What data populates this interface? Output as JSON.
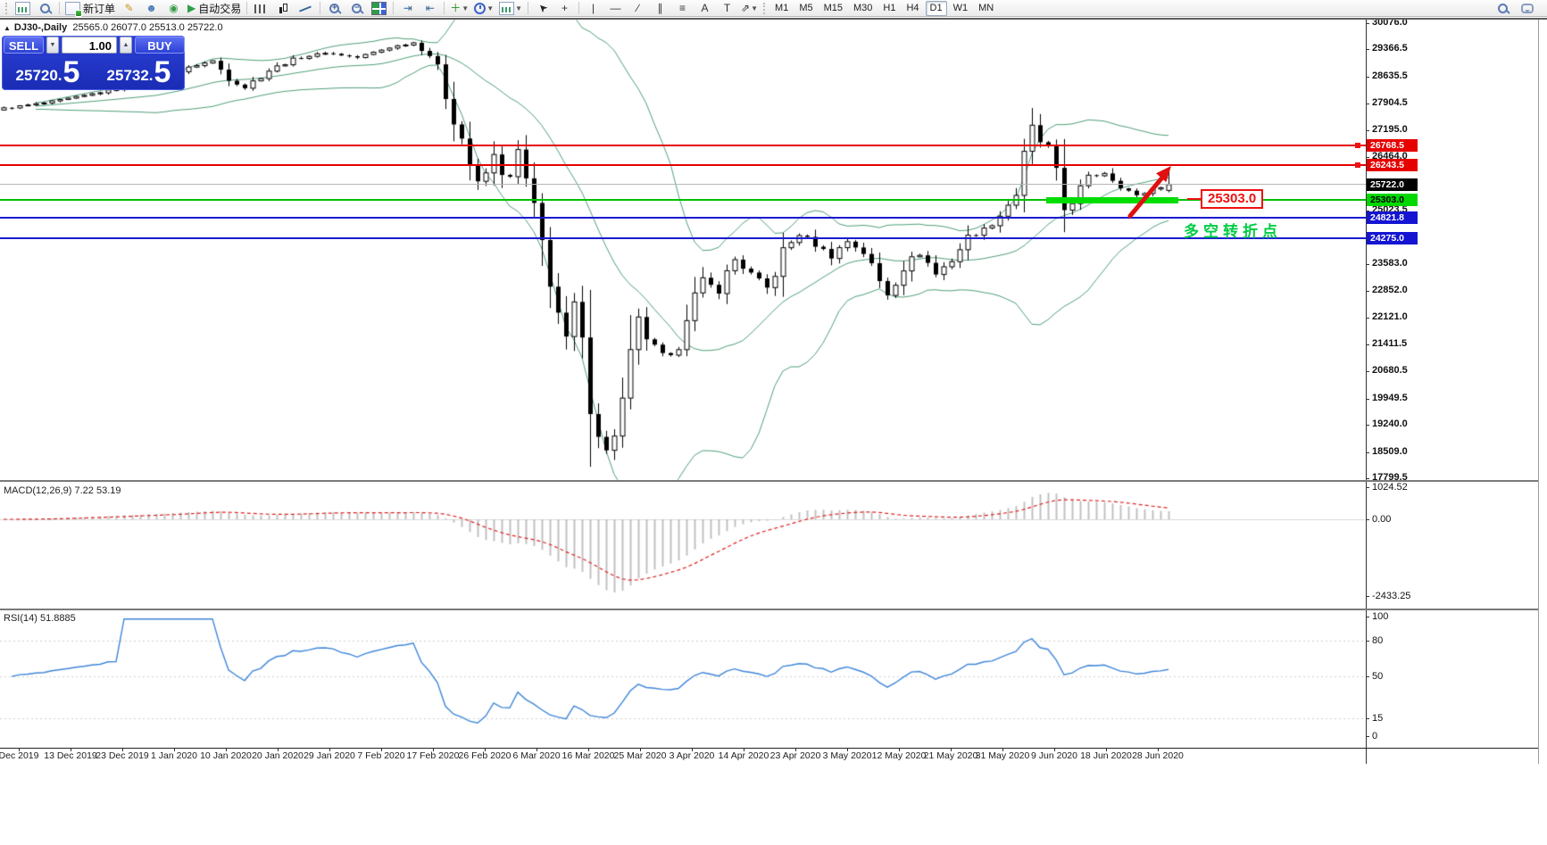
{
  "toolbar": {
    "groups": [
      {
        "items": [
          {
            "name": "new-chart",
            "icon": "ic-chart"
          },
          {
            "name": "profiles",
            "icon": "ic-mag"
          }
        ]
      },
      {
        "items": [
          {
            "name": "new-order",
            "icon": "ic-doc",
            "label": "新订单"
          },
          {
            "name": "metaeditor",
            "glyph": "✎",
            "color": "#c8961e"
          },
          {
            "name": "community",
            "glyph": "☻",
            "color": "#4a7db8"
          },
          {
            "name": "signals",
            "glyph": "◉",
            "color": "#3a9d4a"
          },
          {
            "name": "autotrading",
            "glyph": "▶",
            "color": "#2e9e46",
            "label": "自动交易"
          }
        ]
      },
      {
        "items": [
          {
            "name": "bar-chart",
            "icon": "ic-bars"
          },
          {
            "name": "candlestick-chart",
            "icon": "ic-candles"
          },
          {
            "name": "line-chart",
            "icon": "ic-line"
          }
        ]
      },
      {
        "items": [
          {
            "name": "zoom-in",
            "icon": "ic-mag",
            "magglyph": "+"
          },
          {
            "name": "zoom-out",
            "icon": "ic-mag",
            "magglyph": "−"
          },
          {
            "name": "tile-windows",
            "icon": "ic-tiles"
          }
        ]
      },
      {
        "items": [
          {
            "name": "auto-scroll",
            "glyph": "⇥",
            "color": "#35679a"
          },
          {
            "name": "chart-shift",
            "glyph": "⇤",
            "color": "#35679a"
          }
        ]
      },
      {
        "items": [
          {
            "name": "indicators",
            "glyph": "＋",
            "color": "#1f8f1f",
            "dropdown": true
          },
          {
            "name": "periods",
            "icon": "ic-clock",
            "dropdown": true
          },
          {
            "name": "templates",
            "icon": "ic-chart",
            "dropdown": true
          }
        ]
      },
      {
        "items": [
          {
            "name": "cursor",
            "glyph": "➤",
            "color": "#222",
            "rotate": -135
          },
          {
            "name": "crosshair",
            "glyph": "+",
            "color": "#333"
          }
        ]
      },
      {
        "items": [
          {
            "name": "vertical-line",
            "glyph": "|",
            "color": "#333"
          },
          {
            "name": "horizontal-line",
            "glyph": "—",
            "color": "#333"
          },
          {
            "name": "trendline",
            "glyph": "∕",
            "color": "#333"
          },
          {
            "name": "equidistant-channel",
            "glyph": "∥",
            "color": "#333"
          },
          {
            "name": "fibonacci",
            "glyph": "≡",
            "color": "#333"
          },
          {
            "name": "text",
            "glyph": "A",
            "color": "#333"
          },
          {
            "name": "text-label",
            "glyph": "T",
            "color": "#333"
          },
          {
            "name": "shapes",
            "glyph": "⇗",
            "color": "#333",
            "dropdown": true
          }
        ]
      }
    ],
    "timeframes": [
      {
        "label": "M1"
      },
      {
        "label": "M5"
      },
      {
        "label": "M15"
      },
      {
        "label": "M30"
      },
      {
        "label": "H1"
      },
      {
        "label": "H4"
      },
      {
        "label": "D1",
        "active": true
      },
      {
        "label": "W1"
      },
      {
        "label": "MN"
      }
    ],
    "right_icons": [
      {
        "name": "search",
        "icon": "ic-mag"
      },
      {
        "name": "chat",
        "icon": "ic-bubble"
      }
    ]
  },
  "chart": {
    "title": {
      "collapse_marker": "▲",
      "symbol_period": "DJ30-,Daily",
      "quote_line": "25565.0 26077.0 25513.0 25722.0"
    },
    "trade_panel": {
      "sell_label": "SELL",
      "buy_label": "BUY",
      "volume": "1.00",
      "spin_down": "▼",
      "spin_up": "▲",
      "sell_price_main": "25720.",
      "sell_price_pip": "5",
      "buy_price_main": "25732.",
      "buy_price_pip": "5"
    }
  },
  "indicators": {
    "macd": {
      "title": "MACD(12,26,9)",
      "value_main": "7.22",
      "value_signal": "53.19"
    },
    "rsi": {
      "title": "RSI(14)",
      "value": "51.8885"
    }
  },
  "annotations": {
    "price_box": {
      "text": "25303.0"
    },
    "turning_point": {
      "text": "多空转折点"
    }
  },
  "chart_data": {
    "type": "candlestick",
    "symbol": "DJ30",
    "timeframe": "Daily",
    "current_bar": {
      "open": 25565.0,
      "high": 26077.0,
      "low": 25513.0,
      "close": 25722.0
    },
    "bid": 25720.5,
    "ask": 25732.5,
    "ylim": [
      17751,
      30196
    ],
    "price_ticks": [
      30076.0,
      29366.5,
      28635.5,
      27904.5,
      27195.0,
      26464.0,
      25023.5,
      23583.0,
      22852.0,
      22121.0,
      21411.5,
      20680.5,
      19949.5,
      19240.0,
      18509.0,
      17799.5
    ],
    "levels": [
      {
        "price": 26768.5,
        "label": "26768.5",
        "line_color": "#e60000",
        "line_width": 2,
        "badge_bg": "#e60000",
        "badge_fg": "#ffffff",
        "anchor_marker": true
      },
      {
        "price": 26243.5,
        "label": "26243.5",
        "line_color": "#e60000",
        "line_width": 2,
        "badge_bg": "#e60000",
        "badge_fg": "#ffffff",
        "anchor_marker": true
      },
      {
        "price": 25722.0,
        "label": "25722.0",
        "line_color": "#b6b6b6",
        "line_width": 1,
        "badge_bg": "#000000",
        "badge_fg": "#ffffff",
        "anchor_marker": false
      },
      {
        "price": 25303.0,
        "label": "25303.0",
        "line_color": "#00c000",
        "line_width": 2,
        "badge_bg": "#00d800",
        "badge_fg": "#000000",
        "anchor_marker": false
      },
      {
        "price": 24821.8,
        "label": "24821.8",
        "line_color": "#1a1ad2",
        "line_width": 2,
        "badge_bg": "#1414d2",
        "badge_fg": "#ffffff",
        "anchor_marker": false
      },
      {
        "price": 24275.0,
        "label": "24275.0",
        "line_color": "#1a1ad2",
        "line_width": 2,
        "badge_bg": "#1414d2",
        "badge_fg": "#ffffff",
        "anchor_marker": false
      }
    ],
    "candle_count": 146,
    "close_keyframes": [
      [
        0,
        27780
      ],
      [
        5,
        27920
      ],
      [
        10,
        28120
      ],
      [
        15,
        28350
      ],
      [
        20,
        28600
      ],
      [
        24,
        28950
      ],
      [
        26,
        29050
      ],
      [
        28,
        28600
      ],
      [
        30,
        28350
      ],
      [
        33,
        28800
      ],
      [
        36,
        29100
      ],
      [
        40,
        29280
      ],
      [
        44,
        29150
      ],
      [
        48,
        29420
      ],
      [
        51,
        29550
      ],
      [
        53,
        29250
      ],
      [
        55,
        28200
      ],
      [
        57,
        27000
      ],
      [
        59,
        25600
      ],
      [
        61,
        26450
      ],
      [
        63,
        25750
      ],
      [
        64,
        26550
      ],
      [
        66,
        24900
      ],
      [
        68,
        23300
      ],
      [
        70,
        21200
      ],
      [
        71,
        22300
      ],
      [
        73,
        20000
      ],
      [
        75,
        18400
      ],
      [
        77,
        19800
      ],
      [
        79,
        21900
      ],
      [
        81,
        21300
      ],
      [
        83,
        20900
      ],
      [
        85,
        22300
      ],
      [
        87,
        23100
      ],
      [
        89,
        22900
      ],
      [
        91,
        23700
      ],
      [
        93,
        23300
      ],
      [
        95,
        22900
      ],
      [
        97,
        23900
      ],
      [
        99,
        24400
      ],
      [
        101,
        24100
      ],
      [
        103,
        23800
      ],
      [
        105,
        24200
      ],
      [
        107,
        23900
      ],
      [
        109,
        23100
      ],
      [
        110,
        22800
      ],
      [
        112,
        23500
      ],
      [
        114,
        23900
      ],
      [
        116,
        23300
      ],
      [
        118,
        23700
      ],
      [
        120,
        24300
      ],
      [
        122,
        24500
      ],
      [
        124,
        24900
      ],
      [
        126,
        25500
      ],
      [
        128,
        27150
      ],
      [
        130,
        26600
      ],
      [
        131,
        25800
      ],
      [
        132,
        25050
      ],
      [
        133,
        25300
      ],
      [
        135,
        25900
      ],
      [
        137,
        26050
      ],
      [
        139,
        25700
      ],
      [
        141,
        25400
      ],
      [
        143,
        25600
      ],
      [
        145,
        25722
      ]
    ],
    "bollinger": {
      "period": 20,
      "deviation": 2,
      "color": "#4f9e78"
    },
    "macd": {
      "fast": 12,
      "slow": 26,
      "signal": 9,
      "axis_ticks": [
        1024.52,
        0.0,
        -2433.25
      ],
      "histogram_color": "#c0c0c0",
      "signal_color": "#dd2222"
    },
    "rsi": {
      "period": 14,
      "axis_ticks": [
        100,
        80,
        50,
        15,
        0
      ],
      "line_color": "#3f86d8",
      "level_lines": [
        80,
        50,
        15
      ]
    },
    "x_dates": [
      "Dec 2019",
      "13 Dec 2019",
      "23 Dec 2019",
      "1 Jan 2020",
      "10 Jan 2020",
      "20 Jan 2020",
      "29 Jan 2020",
      "7 Feb 2020",
      "17 Feb 2020",
      "26 Feb 2020",
      "6 Mar 2020",
      "16 Mar 2020",
      "25 Mar 2020",
      "3 Apr 2020",
      "14 Apr 2020",
      "23 Apr 2020",
      "3 May 2020",
      "12 May 2020",
      "21 May 2020",
      "31 May 2020",
      "9 Jun 2020",
      "18 Jun 2020",
      "28 Jun 2020"
    ]
  }
}
